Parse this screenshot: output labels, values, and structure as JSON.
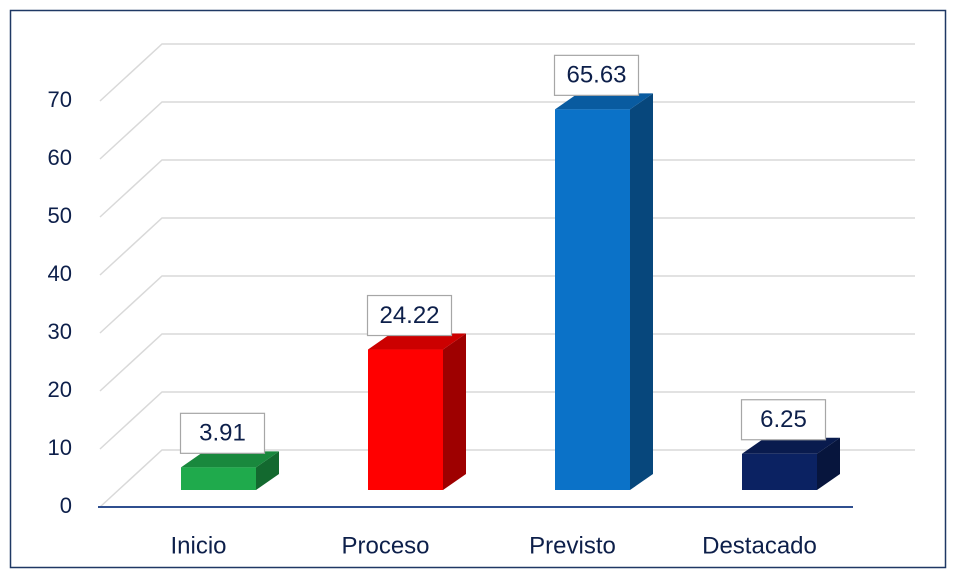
{
  "chart_data": {
    "type": "bar3d",
    "categories": [
      "Inicio",
      "Proceso",
      "Previsto",
      "Destacado"
    ],
    "values": [
      3.91,
      24.22,
      65.63,
      6.25
    ],
    "colors": [
      "#1faa4c",
      "#ff0000",
      "#0b72c8",
      "#0b2262"
    ],
    "ylim": [
      0,
      70
    ],
    "yticks": [
      0,
      10,
      20,
      30,
      40,
      50,
      60,
      70
    ],
    "grid": true
  }
}
